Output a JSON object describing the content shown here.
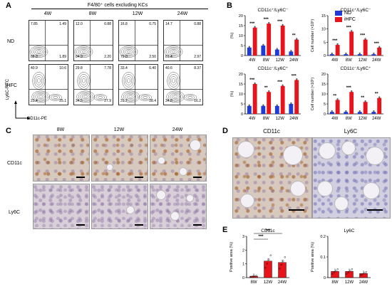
{
  "panels": {
    "A": "A",
    "B": "B",
    "C": "C",
    "D": "D",
    "E": "E"
  },
  "panelA": {
    "title": "F4/80⁺ cells excluding KCs",
    "columns": [
      "4W",
      "8W",
      "12W",
      "24W"
    ],
    "rows": [
      "ND",
      "iHFC"
    ],
    "ylabel": "Ly6C-FITC",
    "xlabel": "CD11c-PE",
    "quadrants": [
      [
        [
          "7.85",
          "1.49",
          "88.8",
          "1.89"
        ],
        [
          "12.0",
          "0.88",
          "84.9",
          "2.20"
        ],
        [
          "16.8",
          "0.75",
          "79.8",
          "2.50"
        ],
        [
          "14.7",
          "0.88",
          "81.4",
          "2.97"
        ]
      ],
      [
        [
          "40.9",
          "10.6",
          "23.4",
          "25.1"
        ],
        [
          "29.8",
          "7.78",
          "34.5",
          "27.9"
        ],
        [
          "33.4",
          "6.40",
          "31.7",
          "28.4"
        ],
        [
          "40.6",
          "8.37",
          "34.8",
          "16.2"
        ]
      ]
    ]
  },
  "panelB": {
    "legend": [
      "ND",
      "iHFC"
    ],
    "colors": {
      "ND": "#1f3bd6",
      "iHFC": "#e8141c"
    },
    "chart_data": [
      {
        "type": "bar",
        "title": "CD11c⁺/Ly6C⁻",
        "ylabel": "(%)",
        "categories": [
          "4W",
          "8W",
          "12W",
          "24W"
        ],
        "ylim": [
          0,
          20
        ],
        "yticks": [
          "0",
          "5",
          "10",
          "15",
          "20"
        ],
        "series": [
          {
            "name": "ND",
            "values": [
              4,
              5,
              3,
              2
            ]
          },
          {
            "name": "iHFC",
            "values": [
              14,
              16,
              15,
              8
            ]
          }
        ],
        "sig": [
          "***",
          "***",
          "***",
          "**"
        ]
      },
      {
        "type": "bar",
        "title": "CD11c⁺/Ly6C⁻",
        "ylabel": "Cell number (×10⁵)",
        "categories": [
          "4W",
          "8W",
          "12W",
          "24W"
        ],
        "ylim": [
          0,
          15
        ],
        "yticks": [
          "0",
          "5",
          "10",
          "15"
        ],
        "series": [
          {
            "name": "ND",
            "values": [
              0.5,
              0.5,
              0.5,
              0.5
            ]
          },
          {
            "name": "iHFC",
            "values": [
              4,
              9,
              6,
              3
            ]
          }
        ],
        "sig": [
          "***",
          "***",
          "***",
          "***"
        ]
      },
      {
        "type": "bar",
        "title": "CD11c⁻/Ly6C⁺",
        "ylabel": "(%)",
        "categories": [
          "4W",
          "8W",
          "12W",
          "24W"
        ],
        "ylim": [
          0,
          20
        ],
        "yticks": [
          "0",
          "5",
          "10",
          "15",
          "20"
        ],
        "series": [
          {
            "name": "ND",
            "values": [
              4,
              4,
              4,
              5
            ]
          },
          {
            "name": "iHFC",
            "values": [
              15,
              11,
              14,
              17
            ]
          }
        ],
        "sig": [
          "***",
          "**",
          "***",
          "***"
        ]
      },
      {
        "type": "bar",
        "title": "CD11c⁻/Ly6C⁺",
        "ylabel": "Cell number (×10⁵)",
        "categories": [
          "4W",
          "8W",
          "12W",
          "24W"
        ],
        "ylim": [
          0,
          20
        ],
        "yticks": [
          "0",
          "5",
          "10",
          "15",
          "20"
        ],
        "series": [
          {
            "name": "ND",
            "values": [
              1,
              1,
              1,
              1
            ]
          },
          {
            "name": "iHFC",
            "values": [
              7,
              11,
              6,
              8
            ]
          }
        ],
        "sig": [
          "**",
          "***",
          "**",
          "**"
        ]
      }
    ]
  },
  "panelC": {
    "columns": [
      "8W",
      "12W",
      "24W"
    ],
    "rows": [
      "CD11c",
      "Ly6C"
    ]
  },
  "panelD": {
    "labels": [
      "CD11c",
      "Ly6C"
    ]
  },
  "panelE": {
    "chart_data": [
      {
        "type": "bar",
        "title": "CD11c",
        "ylabel": "Positive area (%)",
        "categories": [
          "8W",
          "12W",
          "24W"
        ],
        "values": [
          0.1,
          1.2,
          1.1
        ],
        "ylim": [
          0,
          3
        ],
        "yticks": [
          "0",
          "1",
          "2",
          "3"
        ],
        "sig": [
          "***",
          "***"
        ]
      },
      {
        "type": "bar",
        "title": "Ly6C",
        "ylabel": "Positive area (%)",
        "categories": [
          "8W",
          "12W",
          "24W"
        ],
        "values": [
          0.03,
          0.03,
          0.02
        ],
        "ylim": [
          0,
          0.2
        ],
        "yticks": [
          "0",
          "0.1",
          "0.2"
        ]
      }
    ]
  }
}
